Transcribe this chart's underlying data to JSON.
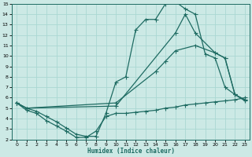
{
  "xlabel": "Humidex (Indice chaleur)",
  "bg_color": "#cce9e5",
  "grid_color": "#aad8d3",
  "line_color": "#1e6b62",
  "xlim": [
    -0.5,
    23.5
  ],
  "ylim": [
    2,
    15
  ],
  "xticks": [
    0,
    1,
    2,
    3,
    4,
    5,
    6,
    7,
    8,
    9,
    10,
    11,
    12,
    13,
    14,
    15,
    16,
    17,
    18,
    19,
    20,
    21,
    22,
    23
  ],
  "yticks": [
    2,
    3,
    4,
    5,
    6,
    7,
    8,
    9,
    10,
    11,
    12,
    13,
    14,
    15
  ],
  "curve1_x": [
    0,
    1,
    2,
    3,
    4,
    5,
    6,
    7,
    8,
    9,
    10,
    11,
    12,
    13,
    14,
    15,
    16,
    17,
    18,
    19,
    20,
    21,
    22,
    23
  ],
  "curve1_y": [
    5.5,
    5.0,
    4.7,
    4.2,
    3.7,
    3.1,
    2.5,
    2.3,
    2.3,
    4.5,
    7.5,
    8.0,
    12.5,
    13.5,
    13.5,
    15.0,
    15.2,
    14.5,
    14.0,
    10.2,
    9.8,
    7.0,
    6.3,
    5.7
  ],
  "curve2_x": [
    0,
    1,
    2,
    3,
    4,
    5,
    6,
    7,
    8,
    9,
    10,
    11,
    12,
    13,
    14,
    15,
    16,
    17,
    18,
    19,
    20,
    21,
    22,
    23
  ],
  "curve2_y": [
    5.5,
    4.8,
    4.5,
    3.8,
    3.3,
    2.8,
    2.2,
    2.2,
    2.8,
    4.2,
    4.5,
    4.5,
    4.6,
    4.7,
    4.8,
    5.0,
    5.1,
    5.3,
    5.4,
    5.5,
    5.6,
    5.7,
    5.8,
    6.0
  ],
  "curve3_x": [
    0,
    1,
    10,
    16,
    17,
    18,
    20,
    21,
    22,
    23
  ],
  "curve3_y": [
    5.5,
    5.0,
    5.2,
    12.2,
    14.0,
    12.2,
    10.3,
    9.8,
    6.3,
    5.8
  ],
  "curve4_x": [
    0,
    1,
    10,
    14,
    15,
    16,
    18,
    20,
    21,
    22,
    23
  ],
  "curve4_y": [
    5.5,
    5.0,
    5.5,
    8.5,
    9.5,
    10.5,
    11.0,
    10.3,
    9.8,
    6.3,
    5.8
  ]
}
